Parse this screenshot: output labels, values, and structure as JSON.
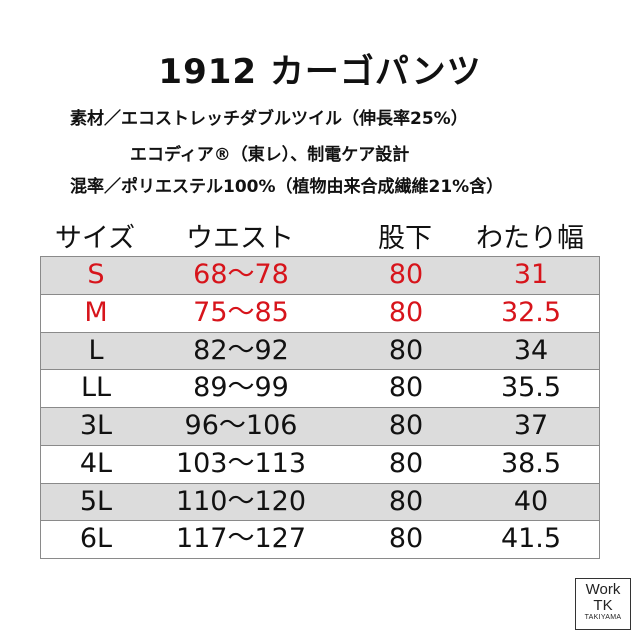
{
  "title": "1912 カーゴパンツ",
  "spec": {
    "line1": "素材／エコストレッチダブルツイル（伸長率25%）",
    "line2": "エコディア®（東レ）、制電ケア設計",
    "line3": "混率／ポリエステル100%（植物由来合成繊維21%含）"
  },
  "table": {
    "headers": [
      "サイズ",
      "ウエスト",
      "股下",
      "わたり幅"
    ],
    "rows": [
      {
        "size": "S",
        "waist": "68〜78",
        "inseam": "80",
        "thigh": "31"
      },
      {
        "size": "M",
        "waist": "75〜85",
        "inseam": "80",
        "thigh": "32.5"
      },
      {
        "size": "L",
        "waist": "82〜92",
        "inseam": "80",
        "thigh": "34"
      },
      {
        "size": "LL",
        "waist": "89〜99",
        "inseam": "80",
        "thigh": "35.5"
      },
      {
        "size": "3L",
        "waist": "96〜106",
        "inseam": "80",
        "thigh": "37"
      },
      {
        "size": "4L",
        "waist": "103〜113",
        "inseam": "80",
        "thigh": "38.5"
      },
      {
        "size": "5L",
        "waist": "110〜120",
        "inseam": "80",
        "thigh": "40"
      },
      {
        "size": "6L",
        "waist": "117〜127",
        "inseam": "80",
        "thigh": "41.5"
      }
    ]
  },
  "logo": {
    "line1": "Work",
    "line2": "TK",
    "line3": "TAKIYAMA"
  },
  "colors": {
    "highlight_text": "#d7141b",
    "shaded_row": "#dcdcdc",
    "border": "#8a8a8a"
  }
}
